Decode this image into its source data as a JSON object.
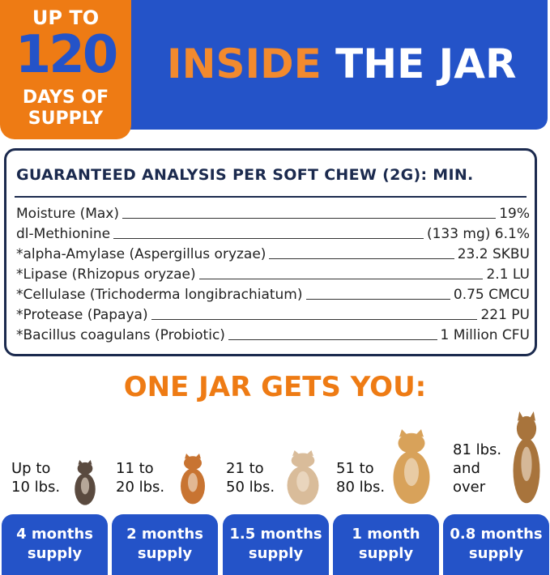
{
  "badge": {
    "line1": "UP TO",
    "number": "120",
    "line3": "DAYS OF",
    "line4": "SUPPLY"
  },
  "header": {
    "title_orange": "INSIDE",
    "title_white": "THE JAR"
  },
  "analysis": {
    "heading": "GUARANTEED ANALYSIS PER SOFT CHEW (2G): MIN.",
    "rows": [
      {
        "name": "Moisture (Max)",
        "value": "19%"
      },
      {
        "name": "dl-Methionine",
        "value": "(133 mg) 6.1%"
      },
      {
        "name": "*alpha-Amylase (Aspergillus oryzae)",
        "value": "23.2 SKBU"
      },
      {
        "name": "*Lipase (Rhizopus oryzae)",
        "value": "2.1 LU"
      },
      {
        "name": "*Cellulase (Trichoderma longibrachiatum)",
        "value": "0.75 CMCU"
      },
      {
        "name": "*Protease (Papaya)",
        "value": "221 PU"
      },
      {
        "name": "*Bacillus coagulans (Probiotic)",
        "value": "1 Million CFU"
      }
    ]
  },
  "gets": {
    "heading": "ONE JAR GETS YOU:"
  },
  "tiers": [
    {
      "weight1": "Up to",
      "weight2": "10 lbs.",
      "weight3": "",
      "supply1": "4 months",
      "supply2": "supply"
    },
    {
      "weight1": "11 to",
      "weight2": "20 lbs.",
      "weight3": "",
      "supply1": "2 months",
      "supply2": "supply"
    },
    {
      "weight1": "21 to",
      "weight2": "50 lbs.",
      "weight3": "",
      "supply1": "1.5 months",
      "supply2": "supply"
    },
    {
      "weight1": "51 to",
      "weight2": "80 lbs.",
      "weight3": "",
      "supply1": "1 month",
      "supply2": "supply"
    },
    {
      "weight1": "81 lbs.",
      "weight2": "and",
      "weight3": "over",
      "supply1": "0.8 months",
      "supply2": "supply"
    }
  ],
  "colors": {
    "orange": "#ee7b14",
    "blue": "#2453c8",
    "navy": "#1b2a4e"
  }
}
